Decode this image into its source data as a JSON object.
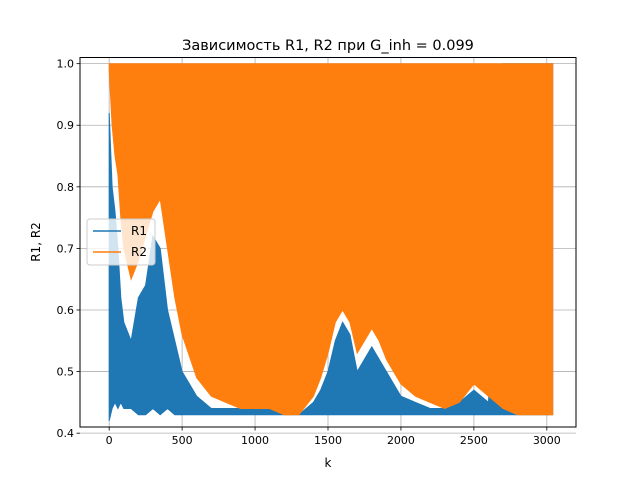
{
  "chart_data": {
    "type": "line",
    "title": "Зависимость R1, R2 при G_inh = 0.099",
    "xlabel": "k",
    "ylabel": "R1, R2",
    "xlim": [
      -200,
      3200
    ],
    "ylim": [
      0.41,
      1.01
    ],
    "x_ticks": [
      0,
      500,
      1000,
      1500,
      2000,
      2500,
      3000
    ],
    "y_ticks": [
      0.4,
      0.5,
      0.6,
      0.7,
      0.8,
      0.9,
      1.0
    ],
    "grid": true,
    "legend": {
      "position": "center-left",
      "entries": [
        "R1",
        "R2"
      ]
    },
    "series": [
      {
        "name": "R1",
        "color": "#1f77b4",
        "x": [
          0,
          20,
          40,
          60,
          80,
          100,
          150,
          200,
          250,
          300,
          350,
          400,
          450,
          500,
          600,
          700,
          800,
          900,
          1000,
          1100,
          1200,
          1300,
          1400,
          1450,
          1500,
          1550,
          1600,
          1650,
          1700,
          1750,
          1800,
          1850,
          1900,
          1950,
          2000,
          2100,
          2200,
          2300,
          2400,
          2500,
          2600,
          2700,
          2800,
          2900,
          3000,
          3040
        ],
        "lower": [
          0.42,
          0.44,
          0.45,
          0.44,
          0.45,
          0.44,
          0.44,
          0.43,
          0.43,
          0.44,
          0.43,
          0.44,
          0.43,
          0.43,
          0.43,
          0.43,
          0.43,
          0.43,
          0.43,
          0.43,
          0.43,
          0.43,
          0.43,
          0.43,
          0.43,
          0.43,
          0.43,
          0.43,
          0.43,
          0.43,
          0.43,
          0.43,
          0.43,
          0.43,
          0.43,
          0.43,
          0.43,
          0.43,
          0.43,
          0.43,
          0.43,
          0.43,
          0.43,
          0.43,
          0.43,
          0.43
        ],
        "upper": [
          0.92,
          0.8,
          0.76,
          0.7,
          0.62,
          0.58,
          0.55,
          0.62,
          0.64,
          0.72,
          0.7,
          0.6,
          0.55,
          0.5,
          0.46,
          0.44,
          0.44,
          0.44,
          0.44,
          0.44,
          0.44,
          0.43,
          0.45,
          0.47,
          0.5,
          0.55,
          0.58,
          0.56,
          0.5,
          0.52,
          0.54,
          0.52,
          0.5,
          0.48,
          0.46,
          0.45,
          0.44,
          0.44,
          0.45,
          0.47,
          0.45,
          1.0,
          1.0,
          1.0,
          1.0,
          1.0
        ]
      },
      {
        "name": "R2",
        "color": "#ff7f0e",
        "x": [
          0,
          20,
          40,
          60,
          80,
          100,
          150,
          200,
          250,
          300,
          350,
          400,
          450,
          500,
          600,
          700,
          800,
          900,
          1000,
          1100,
          1200,
          1300,
          1400,
          1450,
          1500,
          1550,
          1600,
          1650,
          1700,
          1750,
          1800,
          1850,
          1900,
          1950,
          2000,
          2100,
          2200,
          2300,
          2400,
          2500,
          2600,
          2700,
          2800,
          2900,
          3000,
          3040
        ],
        "lower": [
          0.99,
          0.9,
          0.85,
          0.82,
          0.75,
          0.7,
          0.65,
          0.68,
          0.72,
          0.76,
          0.78,
          0.7,
          0.62,
          0.56,
          0.49,
          0.46,
          0.45,
          0.44,
          0.44,
          0.44,
          0.43,
          0.43,
          0.46,
          0.49,
          0.53,
          0.58,
          0.6,
          0.58,
          0.53,
          0.55,
          0.57,
          0.55,
          0.52,
          0.5,
          0.48,
          0.46,
          0.45,
          0.44,
          0.45,
          0.48,
          0.46,
          0.44,
          0.43,
          0.43,
          0.43,
          0.43
        ],
        "upper": [
          1.0,
          1.0,
          1.0,
          1.0,
          1.0,
          1.0,
          1.0,
          1.0,
          1.0,
          1.0,
          1.0,
          1.0,
          1.0,
          1.0,
          1.0,
          1.0,
          1.0,
          1.0,
          1.0,
          1.0,
          1.0,
          1.0,
          1.0,
          1.0,
          1.0,
          1.0,
          1.0,
          1.0,
          1.0,
          1.0,
          1.0,
          1.0,
          1.0,
          1.0,
          1.0,
          1.0,
          1.0,
          1.0,
          1.0,
          1.0,
          1.0,
          1.0,
          1.0,
          1.0,
          1.0,
          1.0
        ]
      }
    ]
  }
}
